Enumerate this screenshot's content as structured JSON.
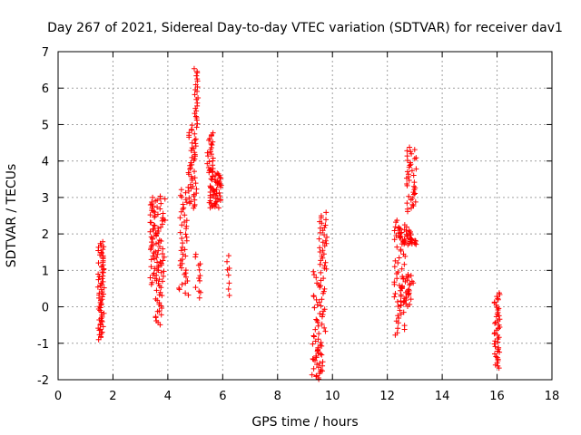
{
  "chart_data": {
    "type": "scatter",
    "title": "Day 267 of 2021, Sidereal Day-to-day VTEC variation (SDTVAR) for receiver dav1",
    "xlabel": "GPS time / hours",
    "ylabel": "SDTVAR / TECUs",
    "xlim": [
      0,
      18
    ],
    "ylim": [
      -2,
      7
    ],
    "x_ticks": [
      "0",
      "2",
      "4",
      "6",
      "8",
      "10",
      "12",
      "14",
      "16",
      "18"
    ],
    "y_ticks": [
      "-2",
      "-1",
      "0",
      "1",
      "2",
      "3",
      "4",
      "5",
      "6",
      "7"
    ],
    "grid": true,
    "marker": "+",
    "color": "#ff0000",
    "series": [
      {
        "name": "SDTVAR",
        "clusters": [
          {
            "x": [
              1.45,
              1.68
            ],
            "y": [
              -0.9,
              1.8
            ],
            "n": 70
          },
          {
            "x": [
              3.35,
              3.9
            ],
            "y": [
              0.6,
              3.05
            ],
            "n": 90
          },
          {
            "x": [
              3.55,
              3.8
            ],
            "y": [
              -0.5,
              0.6
            ],
            "n": 20
          },
          {
            "x": [
              4.4,
              4.75
            ],
            "y": [
              0.3,
              3.3
            ],
            "n": 45
          },
          {
            "x": [
              4.75,
              5.05
            ],
            "y": [
              2.7,
              5.0
            ],
            "n": 50
          },
          {
            "x": [
              4.95,
              5.1
            ],
            "y": [
              5.0,
              6.6
            ],
            "n": 22
          },
          {
            "x": [
              5.0,
              5.2
            ],
            "y": [
              0.2,
              1.5
            ],
            "n": 12
          },
          {
            "x": [
              5.4,
              5.65
            ],
            "y": [
              3.8,
              4.8
            ],
            "n": 20
          },
          {
            "x": [
              5.5,
              5.95
            ],
            "y": [
              2.7,
              3.8
            ],
            "n": 60
          },
          {
            "x": [
              6.15,
              6.25
            ],
            "y": [
              0.3,
              1.5
            ],
            "n": 8
          },
          {
            "x": [
              9.25,
              9.65
            ],
            "y": [
              -2.0,
              -1.0
            ],
            "n": 30
          },
          {
            "x": [
              9.3,
              9.75
            ],
            "y": [
              -1.0,
              1.0
            ],
            "n": 40
          },
          {
            "x": [
              9.5,
              9.8
            ],
            "y": [
              1.0,
              2.6
            ],
            "n": 30
          },
          {
            "x": [
              12.25,
              12.65
            ],
            "y": [
              -0.8,
              2.4
            ],
            "n": 50
          },
          {
            "x": [
              12.4,
              12.9
            ],
            "y": [
              1.7,
              2.2
            ],
            "n": 30
          },
          {
            "x": [
              12.5,
              12.95
            ],
            "y": [
              0.0,
              0.9
            ],
            "n": 35
          },
          {
            "x": [
              12.7,
              13.05
            ],
            "y": [
              2.6,
              4.4
            ],
            "n": 40
          },
          {
            "x": [
              12.8,
              13.05
            ],
            "y": [
              1.7,
              1.9
            ],
            "n": 12
          },
          {
            "x": [
              15.9,
              16.1
            ],
            "y": [
              -1.7,
              0.4
            ],
            "n": 45
          }
        ]
      }
    ]
  }
}
